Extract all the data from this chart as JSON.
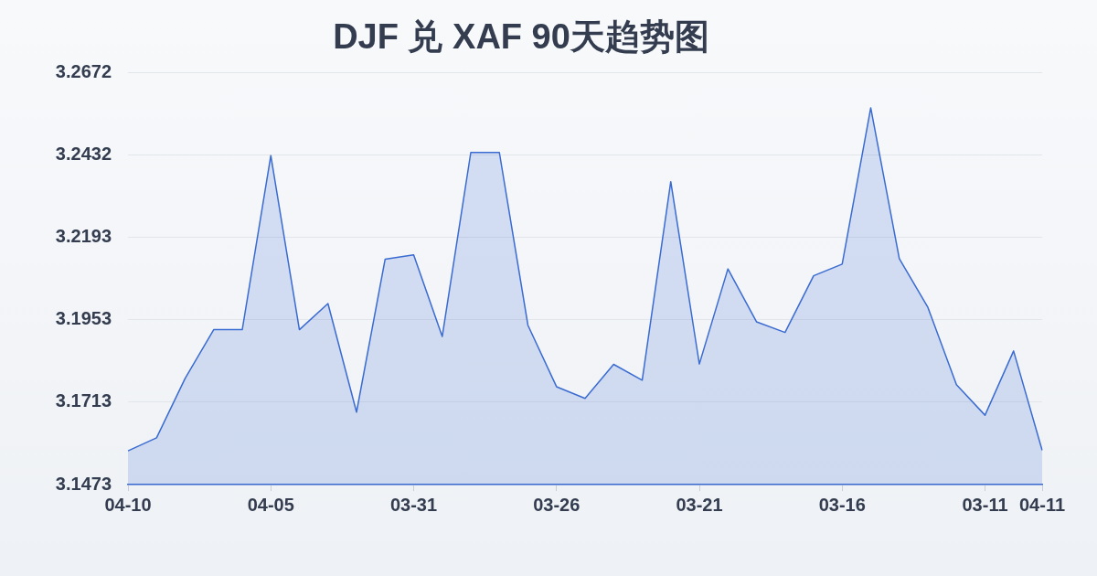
{
  "chart_data": {
    "type": "area",
    "title": "DJF 兑 XAF 90天趋势图",
    "categories": [
      "04-10",
      null,
      null,
      null,
      null,
      "04-05",
      null,
      null,
      null,
      null,
      "03-31",
      null,
      null,
      null,
      null,
      "03-26",
      null,
      null,
      null,
      null,
      "03-21",
      null,
      null,
      null,
      null,
      "03-16",
      null,
      null,
      null,
      null,
      "03-11",
      null,
      "04-11"
    ],
    "series": [
      {
        "color": "#3a6bd1",
        "values": [
          3.1571,
          3.1609,
          3.1782,
          3.1924,
          3.1924,
          3.2431,
          3.1924,
          3.2,
          3.1684,
          3.2129,
          3.2142,
          3.1904,
          3.244,
          3.244,
          3.1937,
          3.1758,
          3.1724,
          3.1823,
          3.1777,
          3.2355,
          3.1824,
          3.2101,
          3.1947,
          3.1916,
          3.2081,
          3.2115,
          3.257,
          3.2131,
          3.1989,
          3.1764,
          3.1675,
          3.1862,
          3.1573
        ]
      }
    ],
    "ylim": [
      3.1473,
      3.2672
    ],
    "yticks": [
      3.1473,
      3.1713,
      3.1953,
      3.2193,
      3.2432,
      3.2672
    ],
    "grid": "y",
    "marker": "none",
    "line_style": "solid"
  }
}
